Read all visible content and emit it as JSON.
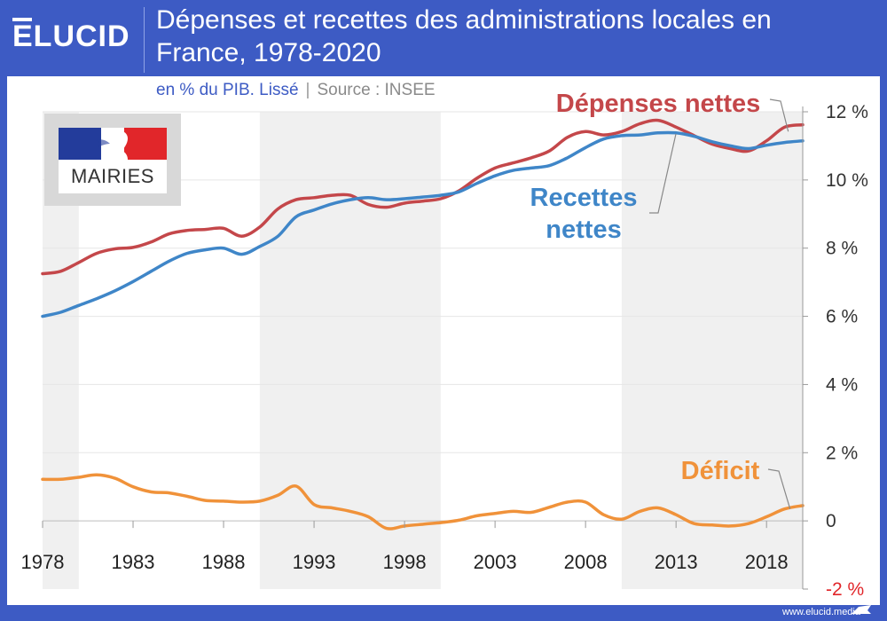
{
  "brand": {
    "logo_text": "ELUCID",
    "footer_url": "www.elucid.media"
  },
  "header": {
    "title": "Dépenses et recettes des administrations locales en France, 1978-2020",
    "subtitle_unit": "en % du PIB. Lissé",
    "subtitle_separator": "|",
    "subtitle_source": "Source : INSEE"
  },
  "badge": {
    "label": "MAIRIES",
    "icon": "marianne-flag-icon"
  },
  "colors": {
    "depenses": "#c4474a",
    "recettes": "#3f86c8",
    "deficit": "#f0923a",
    "brand_blue": "#3d5bc4",
    "shade": "#f0f0f0"
  },
  "chart_data": {
    "type": "line",
    "title": "Dépenses et recettes des administrations locales en France, 1978-2020",
    "subtitle": "en % du PIB. Lissé",
    "source": "Source : INSEE",
    "xlabel": "",
    "ylabel": "",
    "xlim": [
      1978,
      2020
    ],
    "ylim": [
      -2,
      12
    ],
    "x_ticks": [
      1978,
      1983,
      1988,
      1993,
      1998,
      2003,
      2008,
      2013,
      2018
    ],
    "y_ticks": [
      {
        "value": 12,
        "label": "12 %"
      },
      {
        "value": 10,
        "label": "10 %"
      },
      {
        "value": 8,
        "label": "8 %"
      },
      {
        "value": 6,
        "label": "6 %"
      },
      {
        "value": 4,
        "label": "4 %"
      },
      {
        "value": 2,
        "label": "2 %"
      },
      {
        "value": 0,
        "label": "0"
      },
      {
        "value": -2,
        "label": "-2 %"
      }
    ],
    "y_axis_side": "right",
    "grid": true,
    "shaded_periods": [
      [
        1978,
        1980
      ],
      [
        1990,
        2000
      ],
      [
        2010,
        2020
      ]
    ],
    "x": [
      1978,
      1979,
      1980,
      1981,
      1982,
      1983,
      1984,
      1985,
      1986,
      1987,
      1988,
      1989,
      1990,
      1991,
      1992,
      1993,
      1994,
      1995,
      1996,
      1997,
      1998,
      1999,
      2000,
      2001,
      2002,
      2003,
      2004,
      2005,
      2006,
      2007,
      2008,
      2009,
      2010,
      2011,
      2012,
      2013,
      2014,
      2015,
      2016,
      2017,
      2018,
      2019,
      2020
    ],
    "series": [
      {
        "name": "Dépenses nettes",
        "color": "#c4474a",
        "values": [
          7.25,
          7.32,
          7.58,
          7.85,
          7.98,
          8.02,
          8.18,
          8.42,
          8.52,
          8.55,
          8.58,
          8.35,
          8.62,
          9.15,
          9.42,
          9.48,
          9.55,
          9.55,
          9.28,
          9.2,
          9.32,
          9.38,
          9.45,
          9.68,
          10.05,
          10.35,
          10.5,
          10.65,
          10.85,
          11.25,
          11.42,
          11.32,
          11.42,
          11.65,
          11.75,
          11.55,
          11.3,
          11.05,
          10.92,
          10.85,
          11.15,
          11.55,
          11.62
        ]
      },
      {
        "name": "Recettes nettes",
        "color": "#3f86c8",
        "values": [
          6.0,
          6.12,
          6.32,
          6.52,
          6.75,
          7.02,
          7.32,
          7.62,
          7.85,
          7.95,
          8.0,
          7.82,
          8.05,
          8.35,
          8.92,
          9.12,
          9.3,
          9.42,
          9.48,
          9.42,
          9.45,
          9.5,
          9.55,
          9.65,
          9.9,
          10.12,
          10.28,
          10.35,
          10.42,
          10.65,
          10.95,
          11.2,
          11.3,
          11.32,
          11.38,
          11.38,
          11.28,
          11.12,
          11.0,
          10.92,
          11.02,
          11.1,
          11.15
        ]
      },
      {
        "name": "Déficit",
        "color": "#f0923a",
        "values": [
          1.22,
          1.22,
          1.28,
          1.35,
          1.25,
          1.0,
          0.85,
          0.82,
          0.72,
          0.6,
          0.58,
          0.55,
          0.58,
          0.75,
          1.02,
          0.48,
          0.38,
          0.28,
          0.12,
          -0.22,
          -0.15,
          -0.1,
          -0.05,
          0.02,
          0.15,
          0.22,
          0.28,
          0.25,
          0.4,
          0.55,
          0.55,
          0.18,
          0.05,
          0.28,
          0.38,
          0.18,
          -0.08,
          -0.12,
          -0.15,
          -0.08,
          0.12,
          0.35,
          0.45
        ]
      }
    ],
    "annotations": [
      {
        "series": "Dépenses nettes",
        "text": "Dépenses nettes"
      },
      {
        "series": "Recettes nettes",
        "text": "Recettes nettes"
      },
      {
        "series": "Déficit",
        "text": "Déficit"
      }
    ]
  }
}
